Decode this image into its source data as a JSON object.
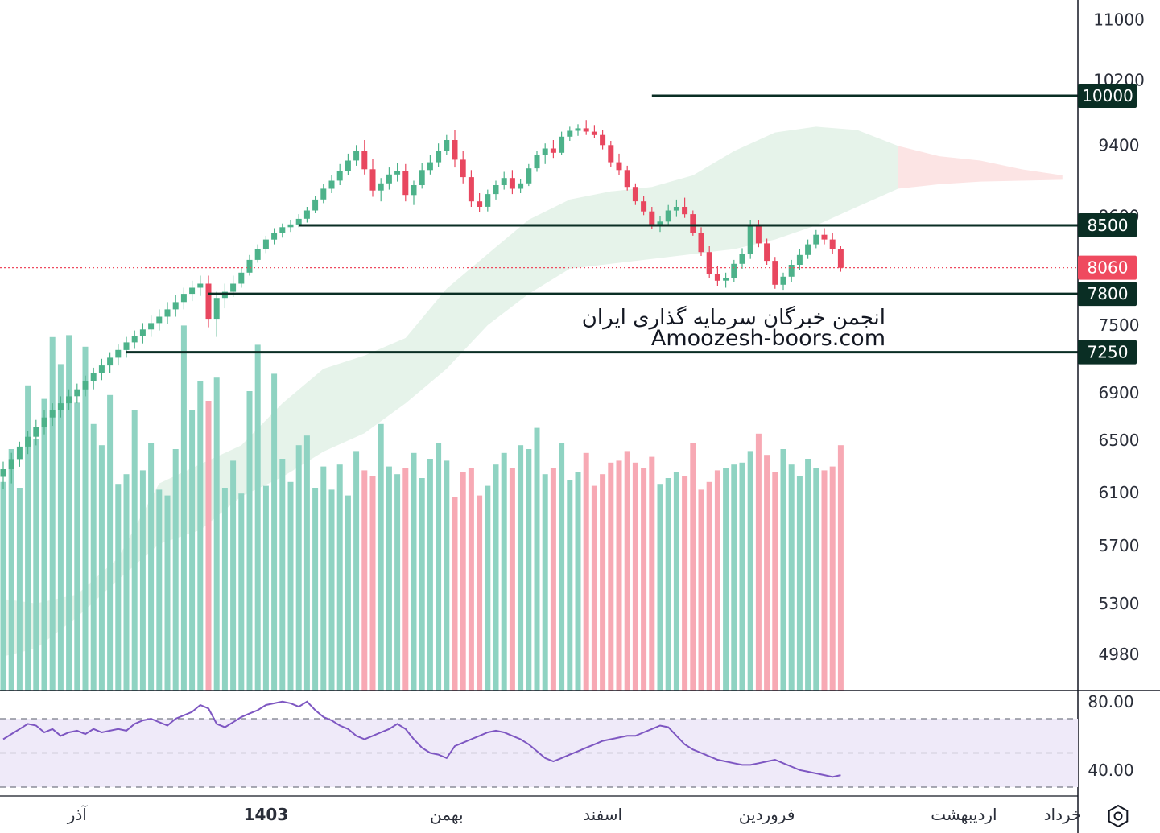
{
  "watermark": {
    "line1": "انجمن خبرگان سرمایه گذاری ایران",
    "line2": "Amoozesh-boors.com"
  },
  "colors": {
    "up": "#4db28a",
    "down": "#e8475f",
    "up_volume": "#8fd3c2",
    "down_volume": "#f7a9b4",
    "level_line": "#0a2e24",
    "badge_bg": "#0a2e24",
    "last_price": "#ef4a5f",
    "cloud_bull": "#e6f3ea",
    "cloud_bear": "#fce4e4",
    "rsi": "#7e57c2",
    "rsi_band": "#efeaf9"
  },
  "chart_data": {
    "type": "candlestick",
    "price_axis": {
      "ticks": [
        "11000",
        "10200",
        "9400",
        "8600",
        "7500",
        "6900",
        "6500",
        "6100",
        "5700",
        "5300",
        "4980"
      ],
      "tick_values": [
        11000,
        10200,
        9400,
        8600,
        7500,
        6900,
        6500,
        6100,
        5700,
        5300,
        4980
      ],
      "scale": "log"
    },
    "time_axis": {
      "labels": [
        "آذر",
        "1403",
        "بهمن",
        "اسفند",
        "فروردین",
        "اردیبهشت",
        "خرداد"
      ],
      "label_bar_index": [
        9,
        32,
        54,
        73,
        93,
        117,
        142
      ]
    },
    "last_price": {
      "value": 8060,
      "label": "8060"
    },
    "levels": [
      {
        "value": 10000,
        "label": "10000",
        "start_bar": 79
      },
      {
        "value": 8500,
        "label": "8500",
        "start_bar": 36
      },
      {
        "value": 7800,
        "label": "7800",
        "start_bar": 25
      },
      {
        "value": 7250,
        "label": "7250",
        "start_bar": 15
      }
    ],
    "candles": [
      [
        6200,
        6320,
        6110,
        6260
      ],
      [
        6260,
        6390,
        6150,
        6340
      ],
      [
        6340,
        6480,
        6280,
        6440
      ],
      [
        6440,
        6570,
        6380,
        6520
      ],
      [
        6520,
        6660,
        6450,
        6600
      ],
      [
        6600,
        6740,
        6540,
        6680
      ],
      [
        6680,
        6800,
        6610,
        6740
      ],
      [
        6740,
        6860,
        6680,
        6800
      ],
      [
        6800,
        6920,
        6740,
        6860
      ],
      [
        6860,
        6970,
        6800,
        6920
      ],
      [
        6920,
        7040,
        6860,
        6990
      ],
      [
        6990,
        7110,
        6920,
        7060
      ],
      [
        7060,
        7190,
        7000,
        7130
      ],
      [
        7130,
        7250,
        7060,
        7200
      ],
      [
        7200,
        7320,
        7130,
        7270
      ],
      [
        7270,
        7390,
        7200,
        7340
      ],
      [
        7340,
        7450,
        7280,
        7400
      ],
      [
        7400,
        7520,
        7330,
        7460
      ],
      [
        7460,
        7590,
        7390,
        7520
      ],
      [
        7520,
        7650,
        7450,
        7580
      ],
      [
        7580,
        7720,
        7510,
        7650
      ],
      [
        7650,
        7790,
        7580,
        7720
      ],
      [
        7720,
        7860,
        7650,
        7800
      ],
      [
        7800,
        7930,
        7730,
        7860
      ],
      [
        7860,
        7980,
        7780,
        7900
      ],
      [
        7900,
        7980,
        7480,
        7560
      ],
      [
        7560,
        7820,
        7390,
        7760
      ],
      [
        7760,
        7900,
        7660,
        7820
      ],
      [
        7820,
        7980,
        7770,
        7900
      ],
      [
        7900,
        8060,
        7860,
        8010
      ],
      [
        8010,
        8190,
        7980,
        8140
      ],
      [
        8140,
        8300,
        8110,
        8250
      ],
      [
        8250,
        8390,
        8210,
        8350
      ],
      [
        8350,
        8470,
        8300,
        8420
      ],
      [
        8420,
        8520,
        8370,
        8480
      ],
      [
        8480,
        8560,
        8430,
        8510
      ],
      [
        8510,
        8620,
        8480,
        8570
      ],
      [
        8570,
        8700,
        8530,
        8660
      ],
      [
        8660,
        8820,
        8630,
        8780
      ],
      [
        8780,
        8950,
        8740,
        8900
      ],
      [
        8900,
        9050,
        8850,
        8990
      ],
      [
        8990,
        9180,
        8940,
        9100
      ],
      [
        9100,
        9300,
        9050,
        9220
      ],
      [
        9220,
        9400,
        9160,
        9330
      ],
      [
        9330,
        9460,
        9060,
        9120
      ],
      [
        9120,
        9240,
        8810,
        8880
      ],
      [
        8880,
        9020,
        8760,
        8960
      ],
      [
        8960,
        9140,
        8890,
        9060
      ],
      [
        9060,
        9190,
        8980,
        9100
      ],
      [
        9100,
        9180,
        8760,
        8830
      ],
      [
        8830,
        8990,
        8720,
        8940
      ],
      [
        8940,
        9190,
        8900,
        9110
      ],
      [
        9110,
        9280,
        9060,
        9200
      ],
      [
        9200,
        9420,
        9150,
        9330
      ],
      [
        9330,
        9520,
        9280,
        9460
      ],
      [
        9460,
        9580,
        9140,
        9230
      ],
      [
        9230,
        9330,
        8960,
        9030
      ],
      [
        9030,
        9110,
        8700,
        8760
      ],
      [
        8760,
        8850,
        8640,
        8700
      ],
      [
        8700,
        8890,
        8650,
        8840
      ],
      [
        8840,
        8990,
        8780,
        8940
      ],
      [
        8940,
        9090,
        8890,
        9020
      ],
      [
        9020,
        9110,
        8840,
        8900
      ],
      [
        8900,
        9010,
        8850,
        8960
      ],
      [
        8960,
        9180,
        8930,
        9130
      ],
      [
        9130,
        9330,
        9090,
        9280
      ],
      [
        9280,
        9420,
        9180,
        9360
      ],
      [
        9360,
        9460,
        9250,
        9310
      ],
      [
        9310,
        9560,
        9280,
        9500
      ],
      [
        9500,
        9620,
        9450,
        9570
      ],
      [
        9570,
        9650,
        9510,
        9600
      ],
      [
        9600,
        9700,
        9520,
        9560
      ],
      [
        9560,
        9640,
        9480,
        9520
      ],
      [
        9520,
        9580,
        9350,
        9400
      ],
      [
        9400,
        9450,
        9150,
        9200
      ],
      [
        9200,
        9300,
        9050,
        9110
      ],
      [
        9110,
        9160,
        8880,
        8920
      ],
      [
        8920,
        8960,
        8720,
        8760
      ],
      [
        8760,
        8820,
        8610,
        8650
      ],
      [
        8650,
        8700,
        8460,
        8500
      ],
      [
        8500,
        8600,
        8430,
        8540
      ],
      [
        8540,
        8720,
        8500,
        8660
      ],
      [
        8660,
        8780,
        8590,
        8700
      ],
      [
        8700,
        8800,
        8580,
        8620
      ],
      [
        8620,
        8660,
        8390,
        8420
      ],
      [
        8420,
        8480,
        8180,
        8220
      ],
      [
        8220,
        8280,
        7960,
        8000
      ],
      [
        8000,
        8080,
        7880,
        7930
      ],
      [
        7930,
        8010,
        7860,
        7960
      ],
      [
        7960,
        8140,
        7920,
        8100
      ],
      [
        8100,
        8260,
        8050,
        8200
      ],
      [
        8200,
        8560,
        8150,
        8500
      ],
      [
        8500,
        8560,
        8270,
        8310
      ],
      [
        8310,
        8360,
        8090,
        8130
      ],
      [
        8130,
        8170,
        7850,
        7890
      ],
      [
        7890,
        8010,
        7840,
        7970
      ],
      [
        7970,
        8140,
        7920,
        8090
      ],
      [
        8090,
        8250,
        8040,
        8190
      ],
      [
        8190,
        8350,
        8150,
        8300
      ],
      [
        8300,
        8450,
        8260,
        8400
      ],
      [
        8400,
        8470,
        8300,
        8350
      ],
      [
        8350,
        8420,
        8200,
        8250
      ],
      [
        8250,
        8280,
        8020,
        8060
      ]
    ],
    "volume": [
      1080,
      1250,
      1050,
      1580,
      1300,
      1510,
      1830,
      1690,
      1840,
      1490,
      1780,
      1380,
      1270,
      1530,
      1070,
      1120,
      1450,
      1140,
      1280,
      1040,
      1010,
      1250,
      1890,
      1450,
      1600,
      1500,
      1620,
      1050,
      1190,
      1020,
      1550,
      1790,
      1060,
      1640,
      1200,
      1080,
      1270,
      1320,
      1050,
      1160,
      1040,
      1170,
      1010,
      1240,
      1140,
      1110,
      1380,
      1160,
      1120,
      1150,
      1230,
      1100,
      1200,
      1280,
      1190,
      1000,
      1130,
      1150,
      1010,
      1060,
      1170,
      1230,
      1150,
      1270,
      1250,
      1360,
      1120,
      1150,
      1280,
      1090,
      1130,
      1230,
      1060,
      1120,
      1180,
      1190,
      1240,
      1180,
      1150,
      1210,
      1070,
      1100,
      1130,
      1110,
      1280,
      1040,
      1080,
      1140,
      1150,
      1170,
      1180,
      1240,
      1330,
      1220,
      1130,
      1250,
      1170,
      1110,
      1200,
      1150,
      1140,
      1160,
      1270
    ],
    "rsi": {
      "levels": {
        "upper": 70,
        "middle": 50,
        "lower": 30
      },
      "ticks": [
        "80.00",
        "40.00"
      ],
      "tick_values": [
        80,
        40
      ],
      "values": [
        58,
        61,
        64,
        67,
        66,
        62,
        64,
        60,
        62,
        63,
        61,
        64,
        62,
        63,
        64,
        63,
        67,
        69,
        70,
        68,
        66,
        70,
        72,
        74,
        78,
        76,
        67,
        65,
        68,
        71,
        73,
        75,
        78,
        79,
        80,
        79,
        77,
        80,
        75,
        71,
        69,
        66,
        64,
        60,
        58,
        60,
        62,
        64,
        67,
        64,
        58,
        53,
        50,
        49,
        47,
        54,
        56,
        58,
        60,
        62,
        63,
        62,
        60,
        58,
        55,
        51,
        47,
        45,
        47,
        49,
        51,
        53,
        55,
        57,
        58,
        59,
        60,
        60,
        62,
        64,
        66,
        65,
        60,
        55,
        52,
        50,
        48,
        46,
        45,
        44,
        43,
        43,
        44,
        45,
        46,
        44,
        42,
        40,
        39,
        38,
        37,
        36,
        37
      ]
    },
    "ichimoku_cloud": {
      "upper": [
        [
          0,
          5320
        ],
        [
          4,
          5290
        ],
        [
          9,
          5350
        ],
        [
          14,
          5600
        ],
        [
          19,
          6150
        ],
        [
          24,
          6300
        ],
        [
          29,
          6450
        ],
        [
          34,
          6800
        ],
        [
          39,
          7100
        ],
        [
          44,
          7220
        ],
        [
          49,
          7380
        ],
        [
          54,
          7850
        ],
        [
          59,
          8200
        ],
        [
          64,
          8560
        ],
        [
          69,
          8780
        ],
        [
          74,
          8870
        ],
        [
          79,
          8920
        ],
        [
          84,
          9050
        ],
        [
          89,
          9330
        ],
        [
          94,
          9550
        ],
        [
          99,
          9620
        ],
        [
          104,
          9580
        ],
        [
          109,
          9390
        ],
        [
          114,
          9270
        ],
        [
          119,
          9220
        ],
        [
          124,
          9120
        ],
        [
          129,
          9050
        ]
      ],
      "lower": [
        [
          0,
          4950
        ],
        [
          4,
          5000
        ],
        [
          9,
          5200
        ],
        [
          14,
          5450
        ],
        [
          19,
          5700
        ],
        [
          24,
          5800
        ],
        [
          29,
          6050
        ],
        [
          34,
          6200
        ],
        [
          39,
          6400
        ],
        [
          44,
          6550
        ],
        [
          49,
          6800
        ],
        [
          54,
          7100
        ],
        [
          59,
          7500
        ],
        [
          64,
          7800
        ],
        [
          69,
          8050
        ],
        [
          74,
          8100
        ],
        [
          79,
          8150
        ],
        [
          84,
          8200
        ],
        [
          89,
          8250
        ],
        [
          94,
          8350
        ],
        [
          99,
          8500
        ],
        [
          104,
          8700
        ],
        [
          109,
          8900
        ],
        [
          114,
          8950
        ],
        [
          119,
          8980
        ],
        [
          124,
          8990
        ],
        [
          129,
          9000
        ]
      ],
      "bear_start_index": 109
    }
  }
}
